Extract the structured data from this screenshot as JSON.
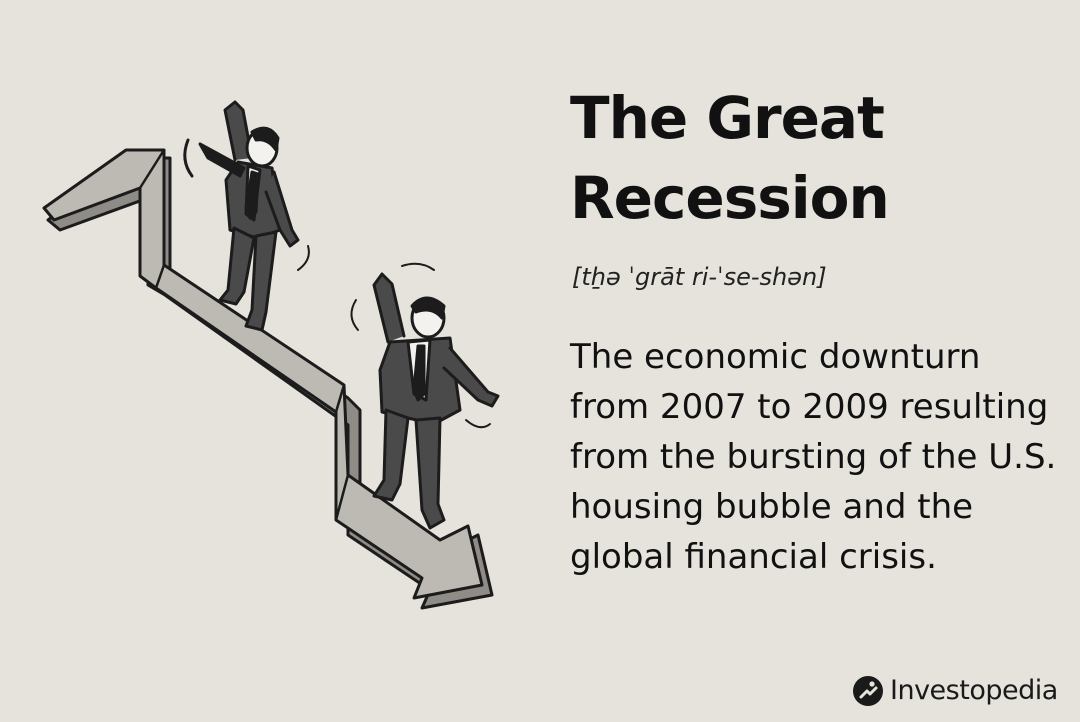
{
  "title": {
    "line1": "The Great",
    "line2": "Recession"
  },
  "pronunciation": "[tẖə ˈgrāt ri-ˈse-shən]",
  "definition": "The economic downturn from 2007 to 2009 resulting from the bursting of the U.S. housing bubble and the global financial crisis.",
  "illustration": {
    "subject": "two-businessmen-sliding-down-falling-arrow",
    "colors": {
      "arrow_face": "#bdbab4",
      "arrow_side": "#8f8c87",
      "outline": "#1c1c1c",
      "suit": "#4a4a4a",
      "shirt": "#f4f2ee"
    }
  },
  "brand": {
    "name": "Investopedia",
    "icon": "investopedia-logo-icon"
  },
  "colors": {
    "background": "#e6e3dd",
    "text": "#111111"
  }
}
